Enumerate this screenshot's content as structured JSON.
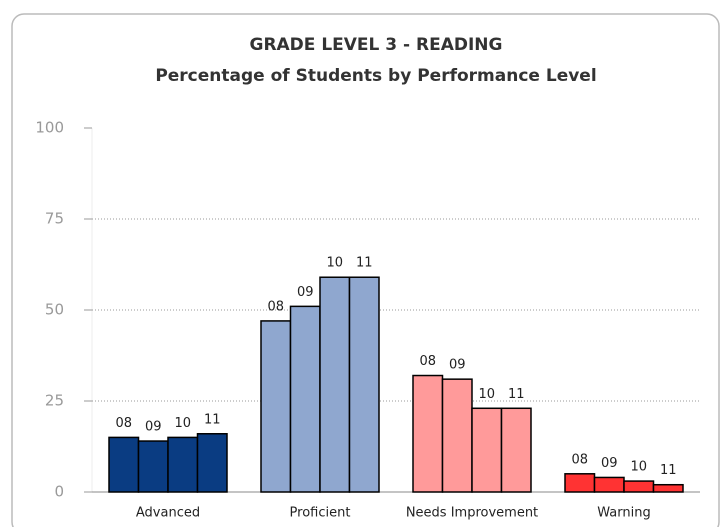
{
  "chart_data": {
    "type": "bar",
    "title": "GRADE LEVEL 3 - READING",
    "subtitle": "Percentage of Students by Performance Level",
    "categories": [
      "Advanced",
      "Proficient",
      "Needs Improvement",
      "Warning"
    ],
    "category_colors": [
      "#0a3c82",
      "#8fa7cf",
      "#ff9a9a",
      "#ff3333"
    ],
    "series": [
      {
        "name": "08",
        "values": [
          15,
          47,
          32,
          5
        ]
      },
      {
        "name": "09",
        "values": [
          14,
          51,
          31,
          4
        ]
      },
      {
        "name": "10",
        "values": [
          15,
          59,
          23,
          3
        ]
      },
      {
        "name": "11",
        "values": [
          16,
          59,
          23,
          2
        ]
      }
    ],
    "ylim": [
      0,
      100
    ],
    "yticks": [
      0,
      25,
      50,
      75,
      100
    ],
    "grid": true
  }
}
